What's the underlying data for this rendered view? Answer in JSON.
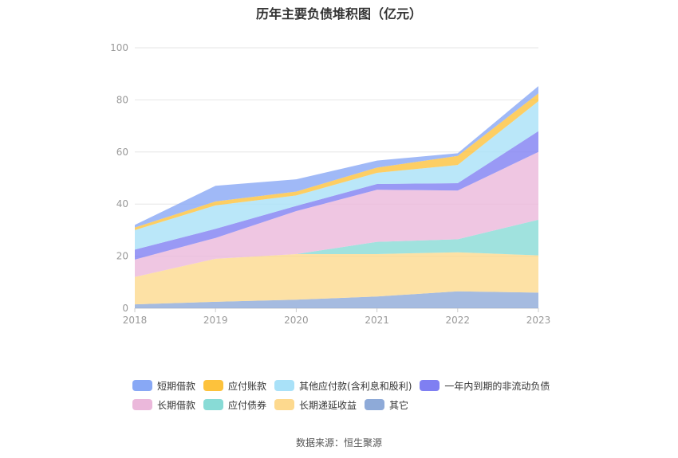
{
  "chart_data": {
    "type": "area",
    "title": "历年主要负债堆积图（亿元）",
    "x": [
      "2018",
      "2019",
      "2020",
      "2021",
      "2022",
      "2023"
    ],
    "ylim": [
      0,
      100
    ],
    "yticks": [
      0,
      20,
      40,
      60,
      80,
      100
    ],
    "stacked": true,
    "grid": true,
    "legend_position": "bottom",
    "series": [
      {
        "name": "其它",
        "color": "#8eaad8",
        "values": [
          1.5,
          2.5,
          3.3,
          4.5,
          6.5,
          6.0
        ]
      },
      {
        "name": "长期递延收益",
        "color": "#fdd98e",
        "values": [
          10.5,
          16.5,
          17.5,
          16.3,
          15.0,
          14.3
        ]
      },
      {
        "name": "应付债券",
        "color": "#88dbd6",
        "values": [
          0,
          0,
          0,
          4.7,
          5.0,
          13.7
        ]
      },
      {
        "name": "长期借款",
        "color": "#ebb8db",
        "values": [
          6.7,
          8.0,
          16.5,
          20.0,
          18.7,
          26.0
        ]
      },
      {
        "name": "一年内到期的非流动负债",
        "color": "#7f7ff2",
        "values": [
          3.8,
          3.5,
          2.0,
          2.2,
          2.8,
          8.0
        ]
      },
      {
        "name": "其他应付款(含利息和股利)",
        "color": "#a9e1f8",
        "values": [
          7.5,
          9.0,
          4.0,
          4.3,
          7.0,
          11.5
        ]
      },
      {
        "name": "应付账款",
        "color": "#fdc23c",
        "values": [
          1.0,
          1.5,
          1.5,
          2.0,
          3.5,
          3.0
        ]
      },
      {
        "name": "短期借款",
        "color": "#88a8f5",
        "values": [
          1.0,
          6.0,
          4.7,
          2.7,
          1.0,
          2.8
        ]
      }
    ]
  },
  "legend": {
    "row1": [
      {
        "label": "短期借款",
        "color": "#88a8f5"
      },
      {
        "label": "应付账款",
        "color": "#fdc23c"
      },
      {
        "label": "其他应付款(含利息和股利)",
        "color": "#a9e1f8"
      },
      {
        "label": "一年内到期的非流动负债",
        "color": "#7f7ff2"
      }
    ],
    "row2": [
      {
        "label": "长期借款",
        "color": "#ebb8db"
      },
      {
        "label": "应付债券",
        "color": "#88dbd6"
      },
      {
        "label": "长期递延收益",
        "color": "#fdd98e"
      },
      {
        "label": "其它",
        "color": "#8eaad8"
      }
    ]
  },
  "source": "数据来源：恒生聚源"
}
